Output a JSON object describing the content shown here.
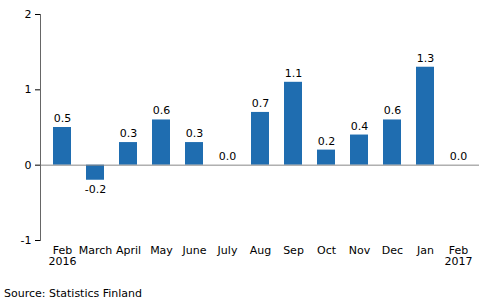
{
  "chart_data": {
    "type": "bar",
    "categories": [
      "Feb\n2016",
      "March",
      "April",
      "May",
      "June",
      "July",
      "Aug",
      "Sep",
      "Oct",
      "Nov",
      "Dec",
      "Jan",
      "Feb\n2017"
    ],
    "values": [
      0.5,
      -0.2,
      0.3,
      0.6,
      0.3,
      0.0,
      0.7,
      1.1,
      0.2,
      0.4,
      0.6,
      1.3,
      0.0
    ],
    "value_labels": [
      "0.5",
      "-0.2",
      "0.3",
      "0.6",
      "0.3",
      "0.0",
      "0.7",
      "1.1",
      "0.2",
      "0.4",
      "0.6",
      "1.3",
      "0.0"
    ],
    "color": "#1f6db0",
    "ylim": [
      -1,
      2
    ],
    "yticks": [
      -1,
      0,
      1,
      2
    ],
    "grid": false,
    "data_labels": true,
    "source": "Source: Statistics Finland"
  }
}
